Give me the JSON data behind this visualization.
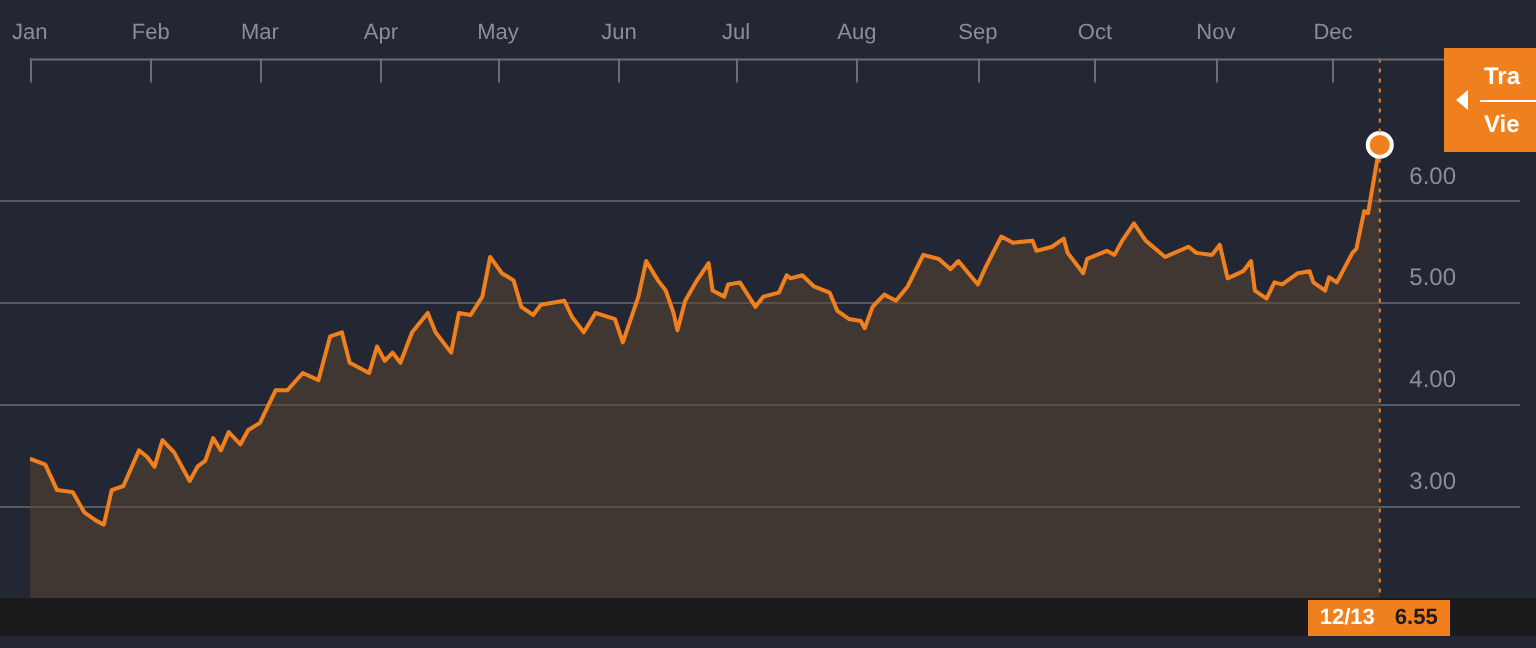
{
  "chart_data": {
    "type": "area",
    "x": [
      "--01-01",
      "--01-05",
      "--01-08",
      "--01-12",
      "--01-15",
      "--01-18",
      "--01-20",
      "--01-22",
      "--01-25",
      "--01-29",
      "--01-31",
      "--02-02",
      "--02-04",
      "--02-07",
      "--02-11",
      "--02-13",
      "--02-15",
      "--02-17",
      "--02-19",
      "--02-21",
      "--02-24",
      "--02-26",
      "--03-01",
      "--03-03",
      "--03-05",
      "--03-08",
      "--03-12",
      "--03-16",
      "--03-19",
      "--03-22",
      "--03-24",
      "--03-29",
      "--03-31",
      "--04-02",
      "--04-04",
      "--04-06",
      "--04-09",
      "--04-13",
      "--04-15",
      "--04-19",
      "--04-21",
      "--04-24",
      "--04-27",
      "--04-29",
      "--05-02",
      "--05-05",
      "--05-07",
      "--05-10",
      "--05-12",
      "--05-18",
      "--05-20",
      "--05-23",
      "--05-26",
      "--05-31",
      "--06-02",
      "--06-06",
      "--06-08",
      "--06-11",
      "--06-13",
      "--06-15",
      "--06-16",
      "--06-18",
      "--06-21",
      "--06-24",
      "--06-25",
      "--06-28",
      "--06-29",
      "--07-02",
      "--07-06",
      "--07-08",
      "--07-12",
      "--07-14",
      "--07-15",
      "--07-18",
      "--07-21",
      "--07-25",
      "--07-27",
      "--07-30",
      "--08-02",
      "--08-03",
      "--08-05",
      "--08-08",
      "--08-11",
      "--08-14",
      "--08-18",
      "--08-22",
      "--08-25",
      "--08-27",
      "--09-01",
      "--09-03",
      "--09-07",
      "--09-10",
      "--09-15",
      "--09-16",
      "--09-20",
      "--09-23",
      "--09-24",
      "--09-28",
      "--09-29",
      "--10-04",
      "--10-06",
      "--10-08",
      "--10-11",
      "--10-14",
      "--10-19",
      "--10-25",
      "--10-27",
      "--10-31",
      "--11-02",
      "--11-04",
      "--11-08",
      "--11-10",
      "--11-11",
      "--11-14",
      "--11-16",
      "--11-18",
      "--11-22",
      "--11-25",
      "--11-26",
      "--11-29",
      "--11-30",
      "--12-02",
      "--12-06",
      "--12-07",
      "--12-09",
      "--12-10",
      "--12-13"
    ],
    "series": [
      {
        "color": "#f0801e",
        "values": [
          3.47,
          3.41,
          3.16,
          3.14,
          2.94,
          2.86,
          2.82,
          3.16,
          3.2,
          3.55,
          3.49,
          3.39,
          3.65,
          3.53,
          3.25,
          3.39,
          3.45,
          3.67,
          3.55,
          3.73,
          3.61,
          3.75,
          3.82,
          3.98,
          4.14,
          4.14,
          4.31,
          4.24,
          4.67,
          4.71,
          4.41,
          4.31,
          4.57,
          4.43,
          4.51,
          4.41,
          4.71,
          4.9,
          4.71,
          4.51,
          4.9,
          4.88,
          5.06,
          5.45,
          5.29,
          5.22,
          4.96,
          4.88,
          4.98,
          5.02,
          4.86,
          4.71,
          4.9,
          4.84,
          4.61,
          5.06,
          5.41,
          5.22,
          5.12,
          4.9,
          4.73,
          5.02,
          5.22,
          5.39,
          5.12,
          5.06,
          5.18,
          5.2,
          4.96,
          5.06,
          5.1,
          5.27,
          5.24,
          5.27,
          5.16,
          5.1,
          4.92,
          4.84,
          4.82,
          4.75,
          4.96,
          5.08,
          5.02,
          5.16,
          5.47,
          5.43,
          5.33,
          5.41,
          5.18,
          5.35,
          5.65,
          5.59,
          5.61,
          5.51,
          5.55,
          5.63,
          5.49,
          5.29,
          5.43,
          5.51,
          5.47,
          5.61,
          5.78,
          5.61,
          5.45,
          5.55,
          5.49,
          5.47,
          5.57,
          5.24,
          5.31,
          5.41,
          5.12,
          5.04,
          5.2,
          5.18,
          5.29,
          5.31,
          5.2,
          5.12,
          5.25,
          5.2,
          5.49,
          5.53,
          5.9,
          5.88,
          6.55
        ]
      }
    ],
    "xlim": [
      "--01-01",
      "--12-31"
    ],
    "xticks": [
      {
        "value": "--01-01",
        "label": "Jan"
      },
      {
        "value": "--02-01",
        "label": "Feb"
      },
      {
        "value": "--03-01",
        "label": "Mar"
      },
      {
        "value": "--04-01",
        "label": "Apr"
      },
      {
        "value": "--05-01",
        "label": "May"
      },
      {
        "value": "--06-01",
        "label": "Jun"
      },
      {
        "value": "--07-01",
        "label": "Jul"
      },
      {
        "value": "--08-01",
        "label": "Aug"
      },
      {
        "value": "--09-01",
        "label": "Sep"
      },
      {
        "value": "--10-01",
        "label": "Oct"
      },
      {
        "value": "--11-01",
        "label": "Nov"
      },
      {
        "value": "--12-01",
        "label": "Dec"
      }
    ],
    "ylim": [
      2.1,
      7.4
    ],
    "yticks": [
      {
        "value": 3,
        "label": "3.00"
      },
      {
        "value": 4,
        "label": "4.00"
      },
      {
        "value": 5,
        "label": "5.00"
      },
      {
        "value": 6,
        "label": "6.00"
      }
    ],
    "grid": "y",
    "legend": false,
    "marker": "none",
    "line_style": "solid",
    "ref_lines": [
      {
        "axis": "x",
        "value": "--12-13",
        "label": "12/13",
        "color": "#f0801e",
        "line_style": "dotted"
      }
    ],
    "annotations": [
      "6.55",
      "Tra",
      "Vie"
    ]
  }
}
